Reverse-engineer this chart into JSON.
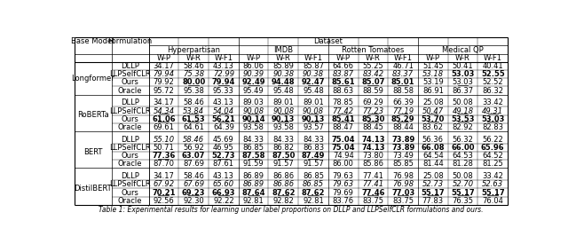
{
  "title": "Dataset",
  "col_groups": [
    "Hyperpartisan",
    "IMDB",
    "Rotten Tomatoes",
    "Medical QP"
  ],
  "sub_cols": [
    "W-P",
    "W-R",
    "W-F1"
  ],
  "row_groups": [
    "Longformer",
    "RoBERTa",
    "BERT",
    "DistilBERT"
  ],
  "formulations": [
    "DLLP",
    "LLPSelfCLR",
    "Ours",
    "Oracle"
  ],
  "data": {
    "Longformer": {
      "DLLP": [
        "34.17",
        "58.46",
        "43.13",
        "86.06",
        "85.89",
        "85.87",
        "64.66",
        "55.25",
        "46.71",
        "51.45",
        "50.41",
        "40.41"
      ],
      "LLPSelfCLR": [
        "79.94",
        "75.38",
        "72.99",
        "90.39",
        "90.38",
        "90.38",
        "83.87",
        "83.42",
        "83.37",
        "53.18",
        "53.03",
        "52.55"
      ],
      "Ours": [
        "79.92",
        "80.00",
        "79.94",
        "92.49",
        "94.48",
        "92.47",
        "85.61",
        "85.07",
        "85.01",
        "53.19",
        "53.03",
        "52.52"
      ],
      "Oracle": [
        "95.72",
        "95.38",
        "95.33",
        "95.49",
        "95.48",
        "95.48",
        "88.63",
        "88.59",
        "88.58",
        "86.91",
        "86.37",
        "86.32"
      ]
    },
    "RoBERTa": {
      "DLLP": [
        "34.17",
        "58.46",
        "43.13",
        "89.03",
        "89.01",
        "89.01",
        "78.85",
        "69.29",
        "66.39",
        "25.08",
        "50.08",
        "33.42"
      ],
      "LLPSelfCLR": [
        "54.34",
        "53.84",
        "54.04",
        "90.08",
        "90.08",
        "90.08",
        "77.42",
        "77.23",
        "77.19",
        "50.47",
        "49.18",
        "49.31"
      ],
      "Ours": [
        "61.06",
        "61.53",
        "56.21",
        "90.14",
        "90.13",
        "90.13",
        "85.41",
        "85.30",
        "85.29",
        "53.70",
        "53.53",
        "53.03"
      ],
      "Oracle": [
        "69.61",
        "64.61",
        "64.39",
        "93.58",
        "93.58",
        "93.57",
        "88.47",
        "88.45",
        "88.44",
        "83.62",
        "82.92",
        "82.83"
      ]
    },
    "BERT": {
      "DLLP": [
        "55.10",
        "58.46",
        "45.69",
        "84.33",
        "84.33",
        "84.33",
        "75.04",
        "74.13",
        "73.89",
        "56.36",
        "56.32",
        "56.22"
      ],
      "LLPSelfCLR": [
        "50.71",
        "56.92",
        "46.95",
        "86.85",
        "86.82",
        "86.83",
        "75.04",
        "74.13",
        "73.89",
        "66.08",
        "66.00",
        "65.96"
      ],
      "Ours": [
        "77.36",
        "63.07",
        "52.73",
        "87.58",
        "87.50",
        "87.49",
        "74.94",
        "73.80",
        "73.49",
        "64.54",
        "64.53",
        "64.52"
      ],
      "Oracle": [
        "87.70",
        "87.69",
        "87.61",
        "91.59",
        "91.57",
        "91.57",
        "86.00",
        "85.86",
        "85.85",
        "81.44",
        "81.28",
        "81.25"
      ]
    },
    "DistilBERT": {
      "DLLP": [
        "34.17",
        "58.46",
        "43.13",
        "86.89",
        "86.86",
        "86.85",
        "79.63",
        "77.41",
        "76.98",
        "25.08",
        "50.08",
        "33.42"
      ],
      "LLPSelfCLR": [
        "67.92",
        "67.69",
        "65.60",
        "86.89",
        "86.86",
        "86.85",
        "79.63",
        "77.41",
        "76.98",
        "52.73",
        "52.70",
        "52.63"
      ],
      "Ours": [
        "70.21",
        "69.23",
        "66.93",
        "87.64",
        "87.62",
        "87.62",
        "79.69",
        "77.46",
        "77.03",
        "55.17",
        "55.17",
        "55.17"
      ],
      "Oracle": [
        "92.56",
        "92.30",
        "92.22",
        "92.81",
        "92.82",
        "92.81",
        "83.76",
        "83.75",
        "83.75",
        "77.83",
        "76.35",
        "76.04"
      ]
    }
  },
  "bold": {
    "Longformer": {
      "LLPSelfCLR": [
        0,
        0,
        0,
        0,
        0,
        0,
        0,
        0,
        0,
        0,
        1,
        1
      ],
      "Ours": [
        0,
        1,
        1,
        1,
        1,
        1,
        1,
        1,
        1,
        0,
        0,
        0
      ]
    },
    "RoBERTa": {
      "Ours": [
        1,
        1,
        1,
        1,
        1,
        1,
        1,
        1,
        1,
        1,
        1,
        1
      ]
    },
    "BERT": {
      "DLLP": [
        0,
        0,
        0,
        0,
        0,
        0,
        1,
        1,
        1,
        0,
        0,
        0
      ],
      "LLPSelfCLR": [
        0,
        0,
        0,
        0,
        0,
        0,
        1,
        1,
        1,
        1,
        1,
        1
      ],
      "Ours": [
        1,
        1,
        1,
        1,
        1,
        1,
        0,
        0,
        0,
        0,
        0,
        0
      ]
    },
    "DistilBERT": {
      "Ours": [
        1,
        1,
        1,
        1,
        1,
        1,
        0,
        1,
        1,
        1,
        1,
        1
      ]
    }
  },
  "italic": {
    "Longformer": {
      "LLPSelfCLR": [
        1,
        1,
        1,
        1,
        1,
        1,
        1,
        1,
        1,
        1,
        0,
        0
      ]
    },
    "RoBERTa": {
      "LLPSelfCLR": [
        1,
        1,
        1,
        1,
        1,
        1,
        1,
        1,
        1,
        1,
        1,
        1
      ]
    },
    "BERT": {
      "DLLP": [
        1,
        1,
        0,
        0,
        0,
        0,
        0,
        0,
        0,
        0,
        0,
        0
      ]
    },
    "DistilBERT": {
      "LLPSelfCLR": [
        1,
        1,
        1,
        1,
        1,
        1,
        1,
        1,
        1,
        1,
        1,
        1
      ]
    }
  },
  "underline": {
    "Longformer": {
      "LLPSelfCLR": [
        0,
        0,
        0,
        0,
        0,
        0,
        0,
        0,
        0,
        0,
        0,
        0
      ],
      "Ours": [
        0,
        1,
        1,
        1,
        1,
        1,
        1,
        1,
        1,
        0,
        1,
        0
      ]
    },
    "RoBERTa": {
      "LLPSelfCLR": [
        1,
        1,
        1,
        1,
        1,
        1,
        1,
        1,
        1,
        1,
        1,
        1
      ],
      "Ours": [
        1,
        1,
        1,
        1,
        1,
        1,
        1,
        1,
        1,
        1,
        1,
        1
      ]
    },
    "BERT": {
      "Ours": [
        1,
        0,
        1,
        1,
        1,
        1,
        0,
        0,
        0,
        0,
        0,
        0
      ]
    },
    "DistilBERT": {
      "Ours": [
        1,
        1,
        1,
        1,
        1,
        1,
        0,
        1,
        1,
        1,
        1,
        1
      ]
    }
  },
  "bg_color": "#ffffff",
  "font_size": 6.0,
  "caption": "Table 1: Experimental results for learning under label proportions on DLLP and LLPSelfCLR formulations and ours."
}
